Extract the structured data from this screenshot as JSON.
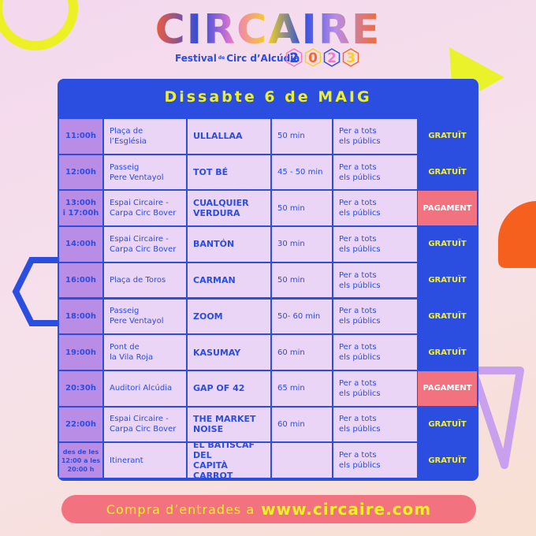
{
  "header": {
    "logo": "CIRCAIRE",
    "subtitle_before": "Festival",
    "subtitle_small": "de",
    "subtitle_after": "Circ d’Alcúdia",
    "year_digits": [
      "2",
      "0",
      "2",
      "3"
    ]
  },
  "schedule": {
    "heading": "Dissabte 6 de MAIG",
    "rows": [
      {
        "time": "11:00h",
        "place": "Plaça de\nl’Església",
        "show": "ULLALLAA",
        "duration": "50 min",
        "audience": "Per a tots\nels públics",
        "price": "GRATUÏT",
        "price_color": "#2b4de0"
      },
      {
        "time": "12:00h",
        "place": "Passeig\nPere Ventayol",
        "show": "TOT BÉ",
        "duration": "45 - 50 min",
        "audience": "Per a tots\nels públics",
        "price": "GRATUÏT",
        "price_color": "#2b4de0"
      },
      {
        "time": "13:00h\ni 17:00h",
        "place": "Espai Circaire -\nCarpa Circ Bover",
        "show": "CUALQUIER\nVERDURA",
        "duration": "50 min",
        "audience": "Per a tots\nels públics",
        "price": "PAGAMENT",
        "price_color": "#f2737f"
      },
      {
        "time": "14:00h",
        "place": "Espai Circaire -\nCarpa Circ Bover",
        "show": "BANTÓN",
        "duration": "30 min",
        "audience": "Per a tots\nels públics",
        "price": "GRATUÏT",
        "price_color": "#2b4de0"
      },
      {
        "time": "16:00h",
        "place": "Plaça de Toros",
        "show": "CARMAN",
        "duration": "50 min",
        "audience": "Per a tots\nels públics",
        "price": "GRATUÏT",
        "price_color": "#2b4de0"
      },
      {
        "time": "18:00h",
        "place": "Passeig\nPere Ventayol",
        "show": "ZOOM",
        "duration": "50- 60 min",
        "audience": "Per a tots\nels públics",
        "price": "GRATUÏT",
        "price_color": "#2b4de0"
      },
      {
        "time": "19:00h",
        "place": "Pont de\nla Vila Roja",
        "show": "KASUMAY",
        "duration": "60 min",
        "audience": "Per a tots\nels públics",
        "price": "GRATUÏT",
        "price_color": "#2b4de0"
      },
      {
        "time": "20:30h",
        "place": "Auditori Alcúdia",
        "show": "GAP OF 42",
        "duration": "65 min",
        "audience": "Per a tots\nels públics",
        "price": "PAGAMENT",
        "price_color": "#f2737f"
      },
      {
        "time": "22:00h",
        "place": "Espai Circaire -\nCarpa Circ Bover",
        "show": "THE MARKET\nNOISE",
        "duration": "60 min",
        "audience": "Per a tots\nels públics",
        "price": "GRATUÏT",
        "price_color": "#2b4de0"
      },
      {
        "time": "des de les\n12:00 a les\n20:00 h",
        "place": "Itinerant",
        "show": "EL BATISCAF DEL\nCAPITÀ CARROT",
        "audience": "Per a tots\nels públics",
        "price": "GRATUÏT",
        "price_color": "#2b4de0"
      }
    ]
  },
  "footer": {
    "text": "Compra d’entrades a",
    "url": "www.circaire.com"
  }
}
